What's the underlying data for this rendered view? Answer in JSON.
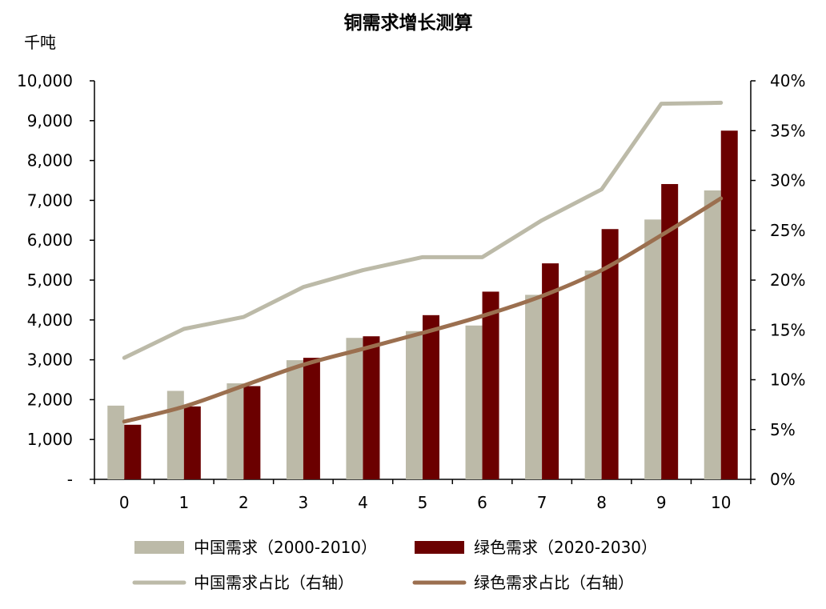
{
  "chart_data": {
    "type": "bar",
    "title": "铜需求增长测算",
    "left_unit": "千吨",
    "categories": [
      "0",
      "1",
      "2",
      "3",
      "4",
      "5",
      "6",
      "7",
      "8",
      "9",
      "10"
    ],
    "ylim": [
      0,
      10000
    ],
    "yticks": [
      0,
      1000,
      2000,
      3000,
      4000,
      5000,
      6000,
      7000,
      8000,
      9000,
      10000
    ],
    "ytick_labels": [
      "-",
      "1,000",
      "2,000",
      "3,000",
      "4,000",
      "5,000",
      "6,000",
      "7,000",
      "8,000",
      "9,000",
      "10,000"
    ],
    "y2lim": [
      0,
      0.4
    ],
    "y2ticks": [
      0,
      0.05,
      0.1,
      0.15,
      0.2,
      0.25,
      0.3,
      0.35,
      0.4
    ],
    "y2tick_labels": [
      "0%",
      "5%",
      "10%",
      "15%",
      "20%",
      "25%",
      "30%",
      "35%",
      "40%"
    ],
    "bar_series": [
      {
        "name": "中国需求（2000-2010）",
        "color": "#bcbaa8",
        "values": [
          1850,
          2220,
          2410,
          2990,
          3550,
          3720,
          3860,
          4630,
          5240,
          6520,
          7250
        ]
      },
      {
        "name": "绿色需求（2020-2030）",
        "color": "#6b0000",
        "values": [
          1370,
          1830,
          2340,
          3050,
          3590,
          4120,
          4710,
          5420,
          6280,
          7410,
          8750
        ]
      }
    ],
    "line_series": [
      {
        "name": "中国需求占比（右轴）",
        "color": "#bcbaa8",
        "values": [
          0.122,
          0.151,
          0.163,
          0.193,
          0.21,
          0.223,
          0.223,
          0.26,
          0.291,
          0.377,
          0.378
        ]
      },
      {
        "name": "绿色需求占比（右轴）",
        "color": "#9b6f4f",
        "values": [
          0.058,
          0.073,
          0.094,
          0.115,
          0.131,
          0.147,
          0.164,
          0.184,
          0.21,
          0.245,
          0.282
        ]
      }
    ],
    "legend_position": "bottom",
    "grid": false
  }
}
